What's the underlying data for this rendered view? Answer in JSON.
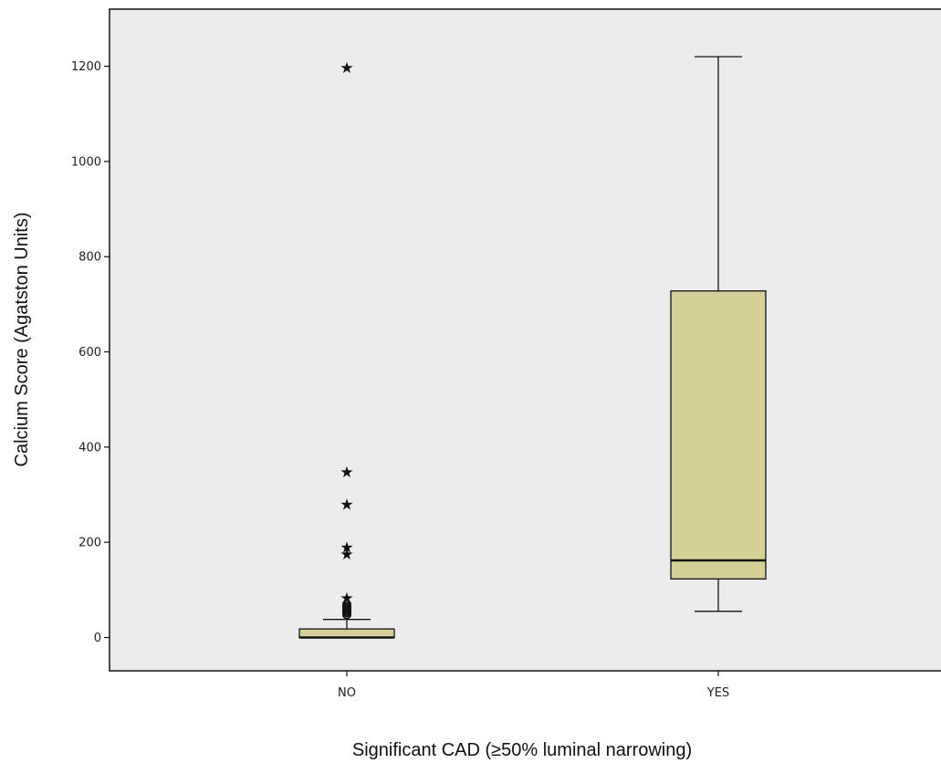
{
  "chart_data": {
    "type": "boxplot",
    "title": "",
    "xlabel": "Significant CAD (≥50% luminal narrowing)",
    "ylabel": "Calcium Score (Agatston Units)",
    "ylim": [
      -70,
      1320
    ],
    "yticks": [
      0,
      200,
      400,
      600,
      800,
      1000,
      1200
    ],
    "grid": false,
    "colors": {
      "plot_bg": "#ececec",
      "box_fill": "#d5cf98",
      "line": "#111111"
    },
    "categories": [
      "NO",
      "YES"
    ],
    "boxes": [
      {
        "category": "NO",
        "whisker_low": 0,
        "q1": 0,
        "median": 0,
        "q3": 18,
        "whisker_high": 38,
        "outliers": [
          48,
          52,
          55,
          58,
          60,
          63,
          66,
          70
        ],
        "extremes": [
          83,
          175,
          190,
          280,
          348,
          1197
        ]
      },
      {
        "category": "YES",
        "whisker_low": 55,
        "q1": 123,
        "median": 162,
        "q3": 728,
        "whisker_high": 1220,
        "outliers": [],
        "extremes": []
      }
    ]
  }
}
